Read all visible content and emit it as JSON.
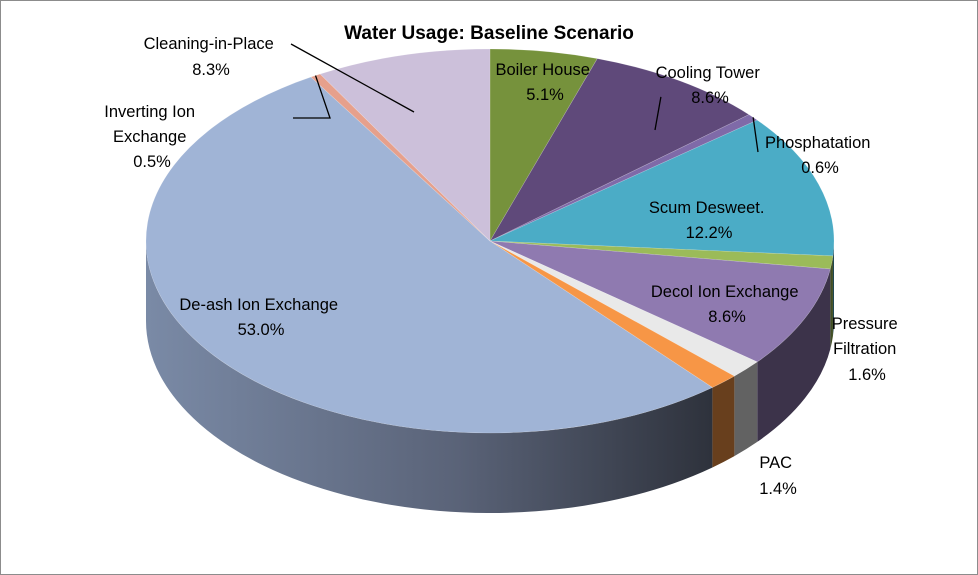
{
  "chart_data": {
    "type": "pie",
    "title": "Water Usage: Baseline Scenario",
    "slices": [
      {
        "name": "Boiler House",
        "value": 5.1,
        "label": "5.1%",
        "color": "#76923c"
      },
      {
        "name": "Cooling Tower",
        "value": 8.6,
        "label": "8.6%",
        "color": "#5f497a"
      },
      {
        "name": "Phosphatation",
        "value": 0.6,
        "label": "0.6%",
        "color": "#7f6aa8"
      },
      {
        "name": "Scum Desweet.",
        "value": 12.2,
        "label": "12.2%",
        "color": "#4bacc6"
      },
      {
        "name": "",
        "value": 1.1,
        "label": "",
        "color": "#9bbb59"
      },
      {
        "name": "Decol Ion Exchange",
        "value": 8.6,
        "label": "8.6%",
        "color": "#8f7ab0"
      },
      {
        "name": "Pressure Filtration",
        "value": 1.6,
        "label": "1.6%",
        "color": "#e9e9e9"
      },
      {
        "name": "PAC",
        "value": 1.4,
        "label": "1.4%",
        "color": "#f79646"
      },
      {
        "name": "De-ash Ion Exchange",
        "value": 53.0,
        "label": "53.0%",
        "color": "#a0b4d6"
      },
      {
        "name": "Inverting Ion Exchange",
        "value": 0.5,
        "label": "0.5%",
        "color": "#e6a08c"
      },
      {
        "name": "Cleaning-in-Place",
        "value": 8.3,
        "label": "8.3%",
        "color": "#ccc0da"
      }
    ],
    "start_angle": "12 o'clock",
    "direction": "clockwise",
    "legend": "none",
    "style": "3d-tilted"
  }
}
